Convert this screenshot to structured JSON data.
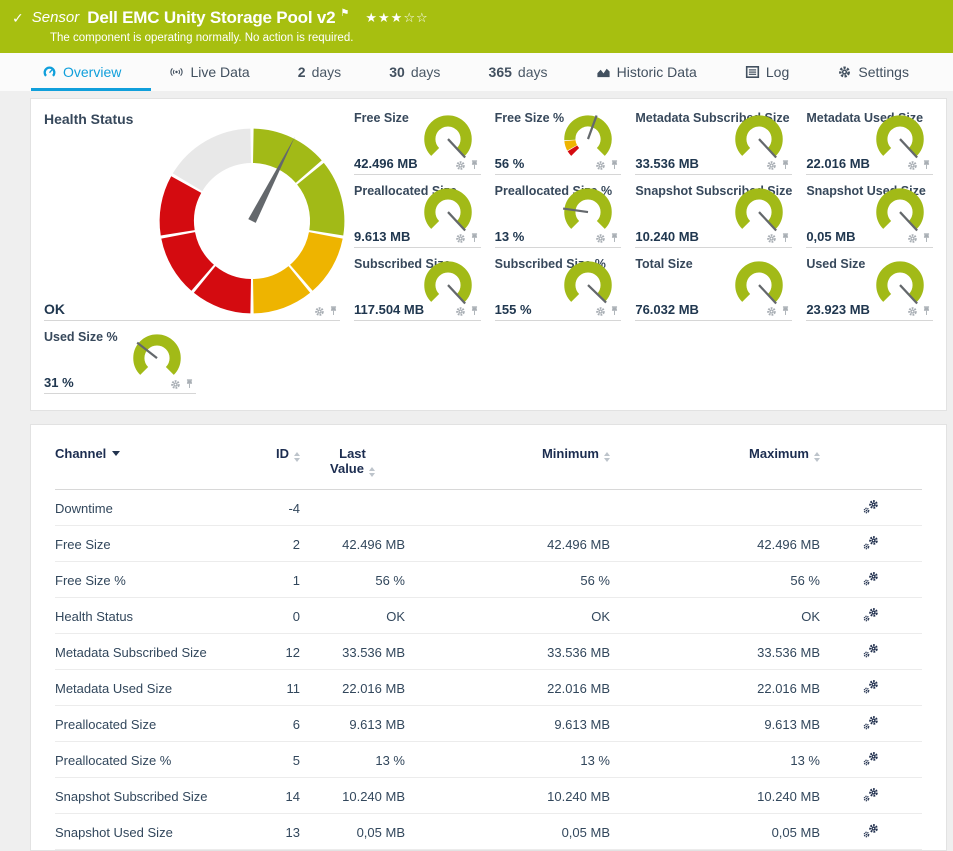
{
  "banner": {
    "status_icon": "✓",
    "kind": "Sensor",
    "title": "Dell EMC Unity Storage Pool v2",
    "flag_icon": "⚑",
    "stars_filled": "★★★",
    "stars_empty": "☆☆",
    "message": "The component is operating normally. No action is required."
  },
  "tabs": [
    {
      "label": "Overview",
      "active": true
    },
    {
      "label": "Live Data"
    },
    {
      "num": "2",
      "label": "days"
    },
    {
      "num": "30",
      "label": "days"
    },
    {
      "num": "365",
      "label": "days"
    },
    {
      "label": "Historic Data"
    },
    {
      "label": "Log"
    },
    {
      "label": "Settings"
    }
  ],
  "colors": {
    "gauge_green": "#a2ba17",
    "gauge_yellow": "#eeb400",
    "gauge_red": "#d40b10",
    "gauge_gray": "#e8e8e8",
    "accent": "#109fdb",
    "banner": "#a7bf10",
    "needle": "#64686c"
  },
  "health": {
    "title": "Health Status",
    "status": "OK",
    "gauge": {
      "needle": 27,
      "segments": [
        {
          "from": 1,
          "to": 49,
          "color": "gauge_green"
        },
        {
          "from": 51,
          "to": 99,
          "color": "gauge_green"
        },
        {
          "from": 101,
          "to": 139,
          "color": "gauge_yellow"
        },
        {
          "from": 141,
          "to": 179,
          "color": "gauge_yellow"
        },
        {
          "from": 181,
          "to": 219,
          "color": "gauge_red"
        },
        {
          "from": 221,
          "to": 259,
          "color": "gauge_red"
        },
        {
          "from": 261,
          "to": 299,
          "color": "gauge_red"
        },
        {
          "from": 301,
          "to": 359,
          "color": "gauge_gray"
        }
      ]
    }
  },
  "tiles": [
    {
      "title": "Free Size",
      "value": "42.496 MB",
      "needle": 137
    },
    {
      "title": "Free Size %",
      "value": "56 %",
      "needle": 20,
      "segments": [
        {
          "from": -135,
          "to": -121,
          "color": "gauge_red"
        },
        {
          "from": -119,
          "to": -95,
          "color": "gauge_yellow"
        },
        {
          "from": -93,
          "to": 135,
          "color": "gauge_green"
        }
      ]
    },
    {
      "title": "Metadata Subscribed Size",
      "value": "33.536 MB",
      "needle": 137
    },
    {
      "title": "Metadata Used Size",
      "value": "22.016 MB",
      "needle": 137
    },
    {
      "title": "Preallocated Size",
      "value": "9.613 MB",
      "needle": 137
    },
    {
      "title": "Preallocated Size %",
      "value": "13 %",
      "needle": -82
    },
    {
      "title": "Snapshot Subscribed Size",
      "value": "10.240 MB",
      "needle": 137
    },
    {
      "title": "Snapshot Used Size",
      "value": "0,05 MB",
      "needle": 137
    },
    {
      "title": "Subscribed Size",
      "value": "117.504 MB",
      "needle": 137
    },
    {
      "title": "Subscribed Size %",
      "value": "155 %",
      "needle": 134
    },
    {
      "title": "Total Size",
      "value": "76.032 MB",
      "needle": 137
    },
    {
      "title": "Used Size",
      "value": "23.923 MB",
      "needle": 137
    },
    {
      "title": "Used Size %",
      "value": "31 %",
      "needle": -52,
      "narrow": true
    }
  ],
  "table": {
    "columns": [
      {
        "label": "Channel",
        "sort": "desc"
      },
      {
        "label": "ID"
      },
      {
        "label": "Last Value"
      },
      {
        "label": "Minimum"
      },
      {
        "label": "Maximum"
      }
    ],
    "rows": [
      {
        "channel": "Downtime",
        "id": "-4",
        "last": "",
        "min": "",
        "max": ""
      },
      {
        "channel": "Free Size",
        "id": "2",
        "last": "42.496 MB",
        "min": "42.496 MB",
        "max": "42.496 MB"
      },
      {
        "channel": "Free Size %",
        "id": "1",
        "last": "56 %",
        "min": "56 %",
        "max": "56 %"
      },
      {
        "channel": "Health Status",
        "id": "0",
        "last": "OK",
        "min": "OK",
        "max": "OK"
      },
      {
        "channel": "Metadata Subscribed Size",
        "id": "12",
        "last": "33.536 MB",
        "min": "33.536 MB",
        "max": "33.536 MB"
      },
      {
        "channel": "Metadata Used Size",
        "id": "11",
        "last": "22.016 MB",
        "min": "22.016 MB",
        "max": "22.016 MB"
      },
      {
        "channel": "Preallocated Size",
        "id": "6",
        "last": "9.613 MB",
        "min": "9.613 MB",
        "max": "9.613 MB"
      },
      {
        "channel": "Preallocated Size %",
        "id": "5",
        "last": "13 %",
        "min": "13 %",
        "max": "13 %"
      },
      {
        "channel": "Snapshot Subscribed Size",
        "id": "14",
        "last": "10.240 MB",
        "min": "10.240 MB",
        "max": "10.240 MB"
      },
      {
        "channel": "Snapshot Used Size",
        "id": "13",
        "last": "0,05 MB",
        "min": "0,05 MB",
        "max": "0,05 MB"
      }
    ]
  }
}
